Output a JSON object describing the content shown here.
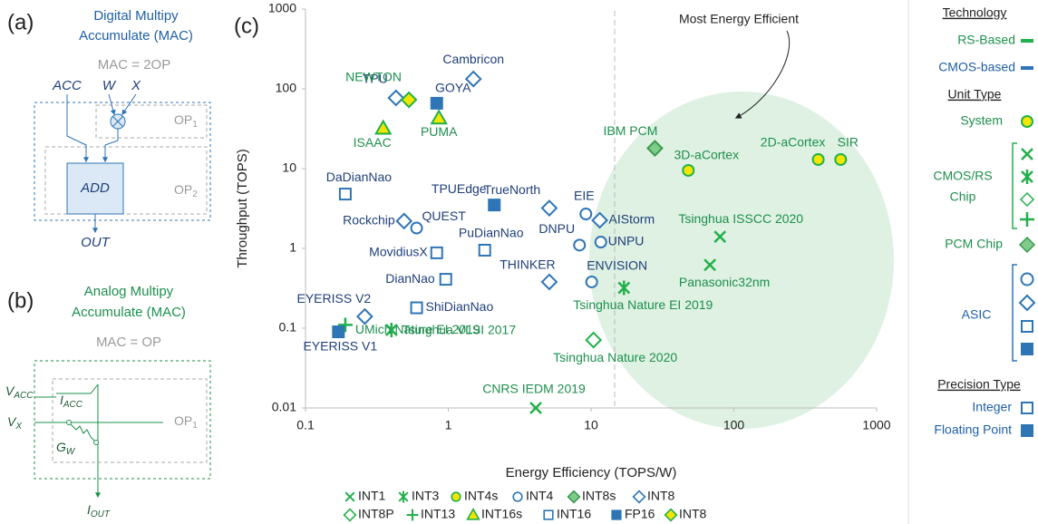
{
  "panel_a": {
    "label": "(a)",
    "title": [
      "Digital Multipy",
      "Accumulate (MAC)"
    ],
    "equation": "MAC = 2OP",
    "inputs": [
      "ACC",
      "W",
      "X"
    ],
    "op1": [
      "OP",
      "1"
    ],
    "add": "ADD",
    "op2": [
      "OP",
      "2"
    ],
    "output": "OUT"
  },
  "panel_b": {
    "label": "(b)",
    "title": [
      "Analog Multipy",
      "Accumulate (MAC)"
    ],
    "equation": "MAC = OP",
    "v_acc": [
      "V",
      "ACC"
    ],
    "i_acc": [
      "I",
      "ACC"
    ],
    "v_x": [
      "V",
      "X"
    ],
    "g_w": [
      "G",
      "W"
    ],
    "op1": [
      "OP",
      "1"
    ],
    "output": [
      "I",
      "OUT"
    ]
  },
  "legend_panel": {
    "technology": {
      "heading": "Technology",
      "items": [
        "RS-Based",
        "CMOS-based"
      ]
    },
    "unit_type": {
      "heading": "Unit Type",
      "items": [
        "System",
        [
          "CMOS/RS",
          "Chip"
        ],
        "PCM Chip",
        "ASIC"
      ]
    },
    "precision_type": {
      "heading": "Precision Type",
      "items": [
        "Integer",
        "Floating Point"
      ]
    }
  },
  "chart_data": {
    "type": "scatter",
    "panel_label": "(c)",
    "xlabel": "Energy Efficiency (TOPS/W)",
    "ylabel": "Throughput (TOPS)",
    "annotation": "Most Energy Efficient",
    "xscale": "log",
    "yscale": "log",
    "xlim": [
      0.1,
      1000
    ],
    "ylim": [
      0.01,
      1000
    ],
    "xticks": [
      0.1,
      1,
      10,
      100,
      1000
    ],
    "yticks": [
      0.01,
      0.1,
      1,
      10,
      100,
      1000
    ],
    "series": [
      {
        "name": "INT1",
        "marker": "x",
        "color": "#22b04b",
        "fill": "none",
        "labels": [
          "Tsinghua ISSCC 2020",
          "Panasonic32nm",
          "CNRS IEDM 2019"
        ],
        "x": [
          80,
          68,
          4.1
        ],
        "values": [
          1.4,
          0.62,
          0.01
        ]
      },
      {
        "name": "INT3",
        "marker": "asterisk",
        "color": "#22b04b",
        "fill": "none",
        "labels": [
          "Tsinghua Nature EI 2019",
          "Tsinghua VLSI 2017"
        ],
        "x": [
          17,
          0.4
        ],
        "values": [
          0.32,
          0.095
        ]
      },
      {
        "name": "INT4s",
        "marker": "circle",
        "color": "#22b04b",
        "fill": "#f2e600",
        "labels": [
          "3D-aCortex",
          "2D-aCortex",
          "SIR"
        ],
        "x": [
          48,
          390,
          560
        ],
        "values": [
          9.5,
          13,
          13
        ]
      },
      {
        "name": "INT4",
        "marker": "circle",
        "color": "#2e75b6",
        "fill": "#ffffff",
        "labels": [
          "QUEST",
          "DNPU",
          "UNPU",
          "ENVISION",
          "EIE"
        ],
        "x": [
          0.6,
          8.3,
          11.7,
          10.1,
          9.2
        ],
        "values": [
          1.8,
          1.1,
          1.2,
          0.38,
          2.7
        ]
      },
      {
        "name": "INT8s",
        "marker": "diamond",
        "color": "#3a9a50",
        "fill": "#7fcb8a",
        "labels": [
          "IBM PCM"
        ],
        "x": [
          28
        ],
        "values": [
          18
        ]
      },
      {
        "name": "INT8",
        "marker": "diamond",
        "color": "#2e75b6",
        "fill": "#ffffff",
        "labels": [
          "TPU",
          "Cambricon",
          "Rockchip",
          "TrueNorth",
          "AIStorm",
          "THINKER",
          "EYERISS V2"
        ],
        "x": [
          0.43,
          1.5,
          0.49,
          5.1,
          11.5,
          5.1,
          0.26
        ],
        "values": [
          77,
          133,
          2.2,
          3.2,
          2.25,
          0.38,
          0.14
        ]
      },
      {
        "name": "INT8P",
        "marker": "diamond",
        "color": "#22b04b",
        "fill": "#ffffff",
        "labels": [
          "Tsinghua Nature 2020"
        ],
        "x": [
          10.4
        ],
        "values": [
          0.071
        ]
      },
      {
        "name": "INT13",
        "marker": "plus",
        "color": "#22b04b",
        "fill": "none",
        "labels": [
          "UMich Nature EI 2019"
        ],
        "x": [
          0.19
        ],
        "values": [
          0.11
        ]
      },
      {
        "name": "INT16s",
        "marker": "triangle",
        "color": "#22b04b",
        "fill": "#f2e600",
        "labels": [
          "ISAAC",
          "PUMA"
        ],
        "x": [
          0.35,
          0.86
        ],
        "values": [
          32,
          43
        ]
      },
      {
        "name": "INT16",
        "marker": "square",
        "color": "#2e75b6",
        "fill": "#ffffff",
        "labels": [
          "DaDianNao",
          "MovidiusX",
          "PuDianNao",
          "DianNao",
          "ShiDianNao"
        ],
        "x": [
          0.19,
          0.83,
          1.8,
          0.96,
          0.6
        ],
        "values": [
          4.8,
          0.88,
          0.95,
          0.41,
          0.18
        ]
      },
      {
        "name": "FP16",
        "marker": "square",
        "color": "#2e75b6",
        "fill": "#2e75b6",
        "labels": [
          "GOYA",
          "TPUEdge",
          "EYERISS V1"
        ],
        "x": [
          0.83,
          2.1,
          0.17
        ],
        "values": [
          66,
          3.5,
          0.09
        ]
      },
      {
        "name": "INT8",
        "marker": "diamond",
        "color": "#22b04b",
        "fill": "#f2e600",
        "labels": [
          "NEWTON"
        ],
        "x": [
          0.53
        ],
        "values": [
          73
        ]
      }
    ]
  }
}
